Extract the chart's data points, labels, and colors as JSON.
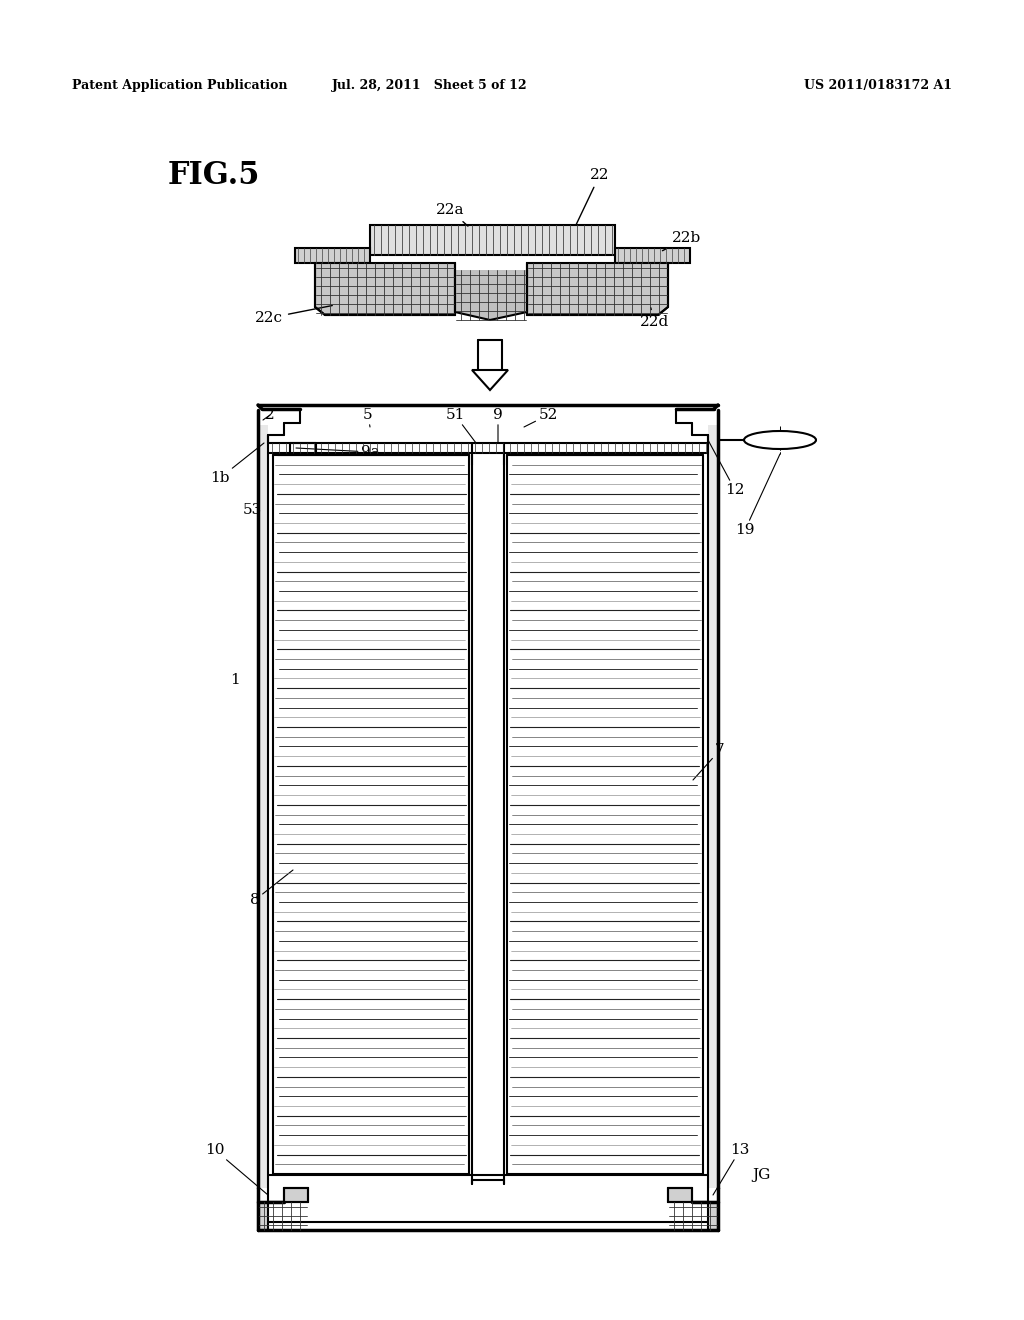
{
  "bg_color": "#ffffff",
  "header_left": "Patent Application Publication",
  "header_mid": "Jul. 28, 2011   Sheet 5 of 12",
  "header_right": "US 2011/0183172 A1",
  "fig_label": "FIG.5",
  "line_color": "#000000",
  "page_width": 10.24,
  "page_height": 13.2,
  "header_font_size": 9,
  "fig_label_size": 22,
  "label_font_size": 11
}
